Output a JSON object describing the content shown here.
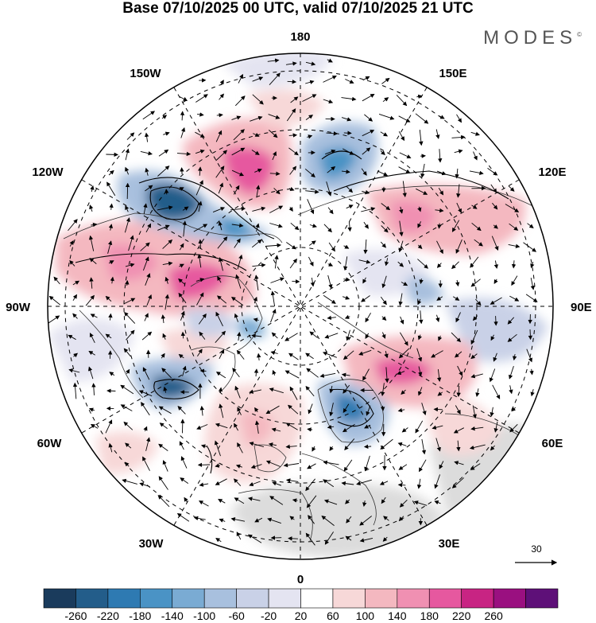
{
  "title": "Base 07/10/2025 00 UTC, valid 07/10/2025 21 UTC",
  "brand": "MODES",
  "brand_mark": "©",
  "longitude_labels": {
    "lon_180": "180",
    "lon_150E": "150E",
    "lon_120E": "120E",
    "lon_90E": "90E",
    "lon_60E": "60E",
    "lon_30E": "30E",
    "lon_0": "0",
    "lon_30W": "30W",
    "lon_60W": "60W",
    "lon_90W": "90W",
    "lon_120W": "120W",
    "lon_150W": "150W"
  },
  "reference_vector": {
    "label": "30"
  },
  "colorbar": {
    "colors": [
      "#1a3b5c",
      "#235d8a",
      "#2e7ab2",
      "#4a93c5",
      "#7aabd3",
      "#a8c0de",
      "#c9d1e7",
      "#e4e4f1",
      "#ffffff",
      "#f7d8d8",
      "#f4b8c0",
      "#f090b2",
      "#e6589f",
      "#c82483",
      "#9a1080",
      "#5e1078"
    ],
    "labels": [
      "-260",
      "-220",
      "-180",
      "-140",
      "-100",
      "-60",
      "-20",
      "20",
      "60",
      "100",
      "140",
      "180",
      "220",
      "260"
    ]
  }
}
